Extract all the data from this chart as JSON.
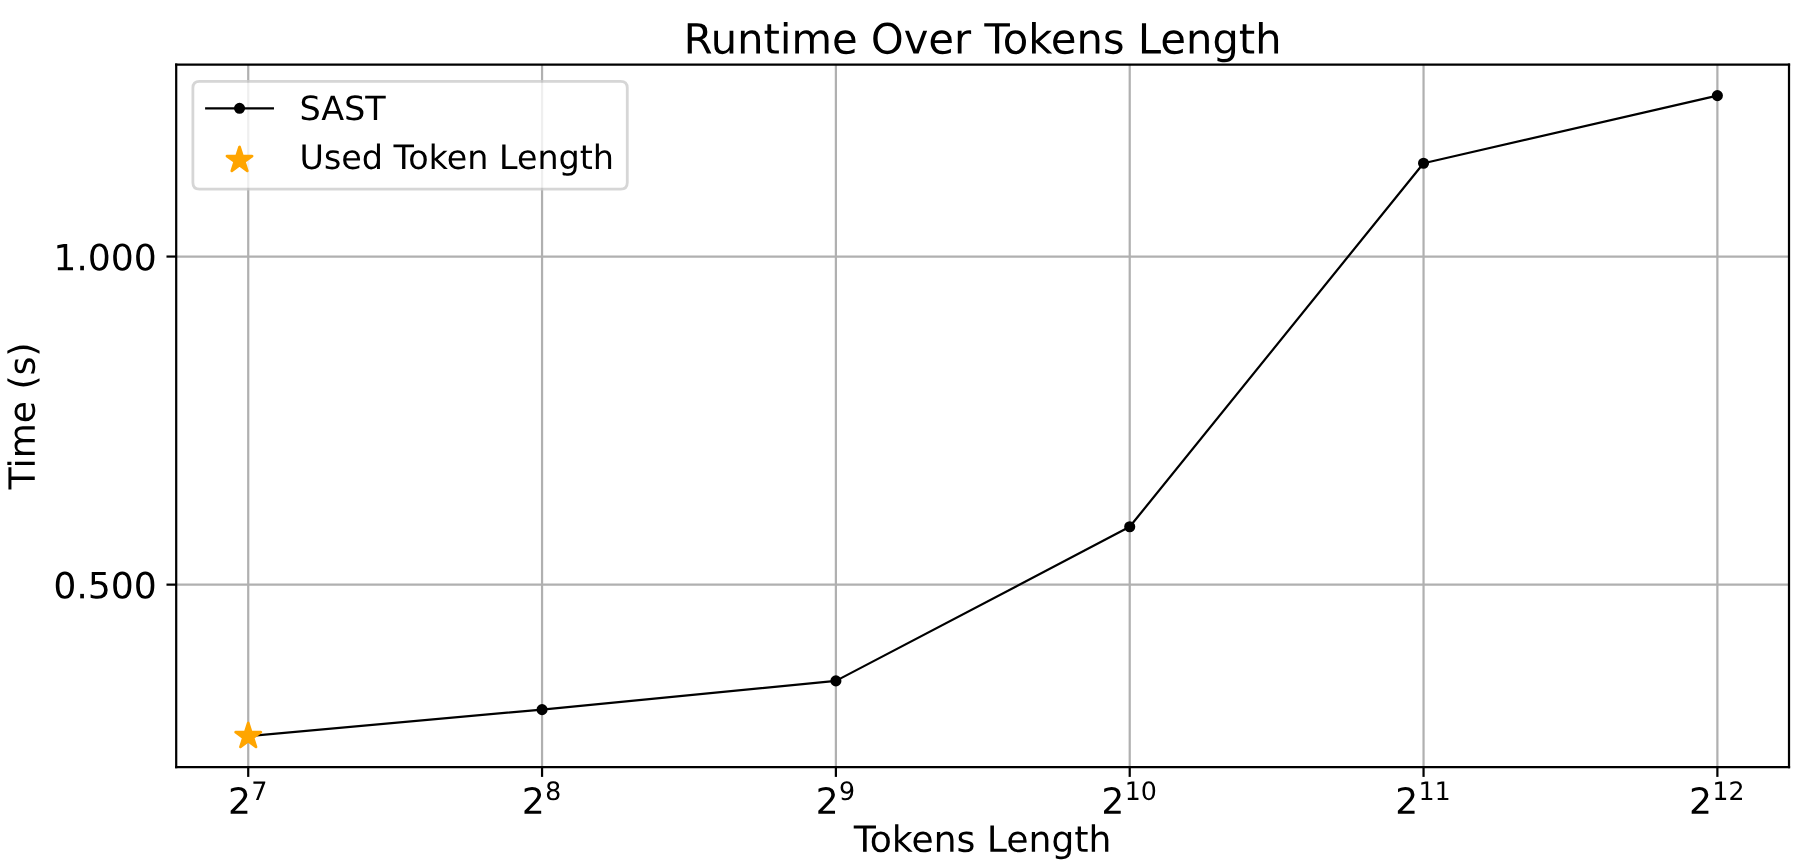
{
  "chart_data": {
    "type": "line",
    "title": "Runtime Over Tokens Length",
    "xlabel": "Tokens Length",
    "ylabel": "Time (s)",
    "log": "xy",
    "x": [
      128,
      256,
      512,
      1024,
      2048,
      4096
    ],
    "series": [
      {
        "name": "SAST",
        "color": "#000000",
        "values": [
          0.363,
          0.384,
          0.408,
          0.565,
          1.218,
          1.405
        ],
        "marker": "circle",
        "line_style": "solid"
      },
      {
        "name": "Used Token Length",
        "type": "scatter",
        "color": "#ffa500",
        "x": [
          128
        ],
        "values": [
          0.363
        ],
        "marker": "star"
      }
    ],
    "xlim": [
      108,
      4850
    ],
    "ylim": [
      0.34,
      1.5
    ],
    "xticks": [
      {
        "value": 128,
        "label": "2$^{7}$"
      },
      {
        "value": 256,
        "label": "2$^{8}$"
      },
      {
        "value": 512,
        "label": "2$^{9}$"
      },
      {
        "value": 1024,
        "label": "2$^{10}$"
      },
      {
        "value": 2048,
        "label": "2$^{11}$"
      },
      {
        "value": 4096,
        "label": "2$^{12}$"
      }
    ],
    "yticks": [
      {
        "value": 0.5,
        "label": "0.500"
      },
      {
        "value": 1.0,
        "label": "1.000"
      }
    ],
    "grid": true,
    "legend": "top left"
  }
}
